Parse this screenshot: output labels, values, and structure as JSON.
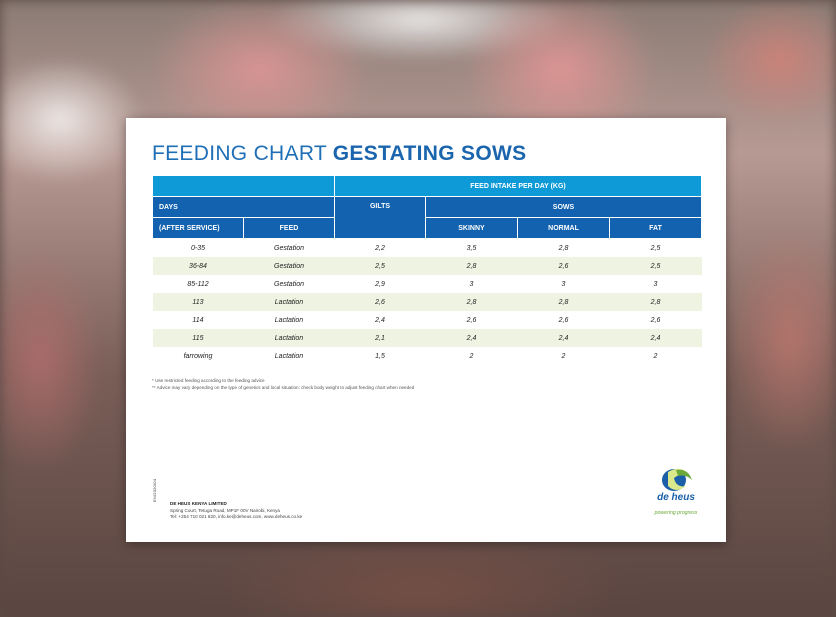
{
  "title": {
    "regular": "FEEDING CHART ",
    "bold": "GESTATING SOWS"
  },
  "table": {
    "header_top": "FEED INTAKE PER DAY (KG)",
    "days": "DAYS",
    "gilts": "GILTS",
    "sows": "SOWS",
    "after_service": "(AFTER SERVICE)",
    "feed": "FEED",
    "skinny": "SKINNY",
    "normal": "NORMAL",
    "fat": "FAT",
    "rows": [
      {
        "days": "0-35",
        "feed": "Gestation",
        "gilts": "2,2",
        "skinny": "3,5",
        "normal": "2,8",
        "fat": "2,5"
      },
      {
        "days": "36-84",
        "feed": "Gestation",
        "gilts": "2,5",
        "skinny": "2,8",
        "normal": "2,6",
        "fat": "2,5"
      },
      {
        "days": "85-112",
        "feed": "Gestation",
        "gilts": "2,9",
        "skinny": "3",
        "normal": "3",
        "fat": "3"
      },
      {
        "days": "113",
        "feed": "Lactation",
        "gilts": "2,6",
        "skinny": "2,8",
        "normal": "2,8",
        "fat": "2,8"
      },
      {
        "days": "114",
        "feed": "Lactation",
        "gilts": "2,4",
        "skinny": "2,6",
        "normal": "2,6",
        "fat": "2,6"
      },
      {
        "days": "115",
        "feed": "Lactation",
        "gilts": "2,1",
        "skinny": "2,4",
        "normal": "2,4",
        "fat": "2,4"
      },
      {
        "days": "farrowing",
        "feed": "Lactation",
        "gilts": "1,5",
        "skinny": "2",
        "normal": "2",
        "fat": "2"
      }
    ]
  },
  "notes": [
    "* Use restricted feeding according to the feeding advice",
    "** Advice may vary depending on the type of genetics and local situation: check body weight to adjust feeding chart when needed"
  ],
  "footer": {
    "code": "EN/2020/04",
    "company_name": "DE HEUS KENYA LIMITED",
    "address": "Spring Court, Tetuga Road, MP1F 00V Nairobi, Kenya",
    "contact": "Tel: +254 710 021 820, info.ke@deheus.com, www.deheus.co.ke"
  },
  "logo": {
    "brand": "de heus",
    "tagline": "powering progress"
  },
  "colors": {
    "header_light": "#0e9ad7",
    "header_dark": "#1262b0",
    "row_alt": "#eef3e2",
    "title": "#1f6fb6",
    "logo_green": "#6aa93a"
  }
}
